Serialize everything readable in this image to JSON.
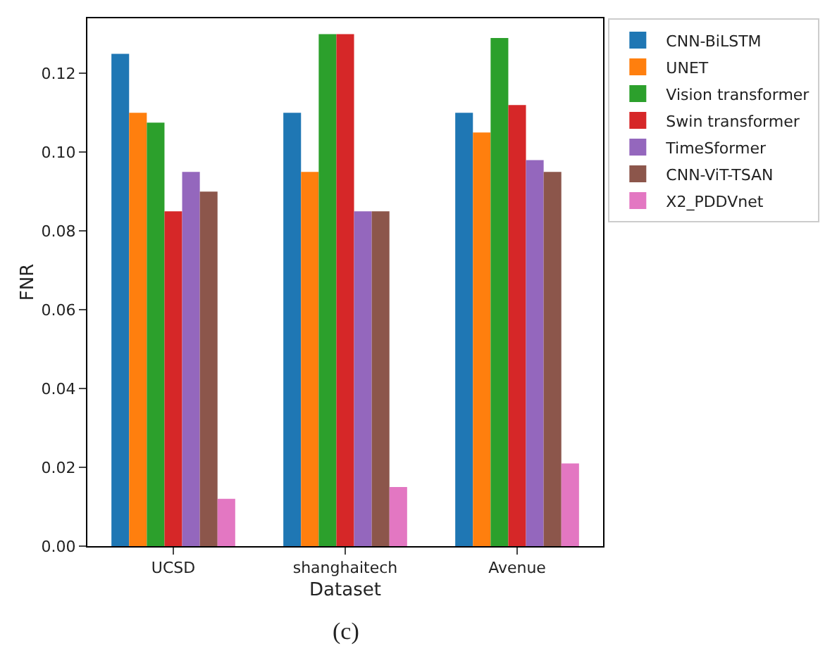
{
  "chart_data": {
    "type": "bar",
    "xlabel": "Dataset",
    "ylabel": "FNR",
    "annotations": [
      "(c)"
    ],
    "categories": [
      "UCSD",
      "shanghaitech",
      "Avenue"
    ],
    "series": [
      {
        "name": "CNN-BiLSTM",
        "color": "#1f77b4",
        "values": [
          0.125,
          0.11,
          0.11
        ]
      },
      {
        "name": "UNET",
        "color": "#ff7f0e",
        "values": [
          0.11,
          0.095,
          0.105
        ]
      },
      {
        "name": "Vision transformer",
        "color": "#2ca02c",
        "values": [
          0.1075,
          0.13,
          0.129
        ]
      },
      {
        "name": "Swin transformer",
        "color": "#d62728",
        "values": [
          0.085,
          0.13,
          0.112
        ]
      },
      {
        "name": "TimeSformer",
        "color": "#9467bd",
        "values": [
          0.095,
          0.085,
          0.098
        ]
      },
      {
        "name": "CNN-ViT-TSAN",
        "color": "#8c564b",
        "values": [
          0.09,
          0.085,
          0.095
        ]
      },
      {
        "name": "X2_PDDVnet",
        "color": "#e377c2",
        "values": [
          0.012,
          0.015,
          0.021
        ]
      }
    ],
    "ylim": [
      0,
      0.134
    ],
    "yticks": [
      {
        "value": 0,
        "label": "0.00"
      },
      {
        "value": 0.02,
        "label": "0.02"
      },
      {
        "value": 0.04,
        "label": "0.04"
      },
      {
        "value": 0.06,
        "label": "0.06"
      },
      {
        "value": 0.08,
        "label": "0.08"
      },
      {
        "value": 0.1,
        "label": "0.10"
      },
      {
        "value": 0.12,
        "label": "0.12"
      }
    ],
    "grid": false,
    "legend": "right"
  }
}
